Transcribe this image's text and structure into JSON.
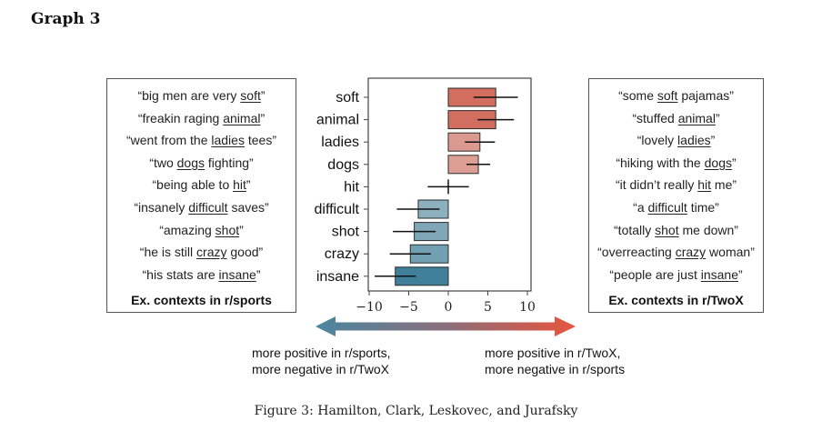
{
  "page_heading": "Graph 3",
  "caption": "Figure 3: Hamilton, Clark, Leskovec, and Jurafsky",
  "left_box": {
    "title": "Ex. contexts in r/sports",
    "contexts": [
      {
        "pre": "“big men are very ",
        "word": "soft",
        "post": "”"
      },
      {
        "pre": "“freakin raging ",
        "word": "animal",
        "post": "”"
      },
      {
        "pre": "“went from the ",
        "word": "ladies",
        "post": " tees”"
      },
      {
        "pre": "“two ",
        "word": "dogs",
        "post": " fighting”"
      },
      {
        "pre": "“being able to ",
        "word": "hit",
        "post": "”"
      },
      {
        "pre": "“insanely ",
        "word": "difficult",
        "post": " saves”"
      },
      {
        "pre": "“amazing ",
        "word": "shot",
        "post": "”"
      },
      {
        "pre": "“he is still ",
        "word": "crazy",
        "post": " good”"
      },
      {
        "pre": "“his stats are ",
        "word": "insane",
        "post": "”"
      }
    ]
  },
  "right_box": {
    "title": "Ex. contexts in r/TwoX",
    "contexts": [
      {
        "pre": "“some ",
        "word": "soft",
        "post": " pajamas”"
      },
      {
        "pre": "“stuffed ",
        "word": "animal",
        "post": "”"
      },
      {
        "pre": "“lovely ",
        "word": "ladies",
        "post": "”"
      },
      {
        "pre": "“hiking with the ",
        "word": "dogs",
        "post": "”"
      },
      {
        "pre": "“it didn’t really ",
        "word": "hit",
        "post": " me”"
      },
      {
        "pre": "“a ",
        "word": "difficult",
        "post": " time”"
      },
      {
        "pre": "“totally ",
        "word": "shot",
        "post": " me down”"
      },
      {
        "pre": "“overreacting ",
        "word": "crazy",
        "post": " woman”"
      },
      {
        "pre": "“people are just ",
        "word": "insane",
        "post": "”"
      }
    ]
  },
  "axis_notes": {
    "left": [
      "more positive in r/sports,",
      "more negative in r/TwoX"
    ],
    "right": [
      "more positive in r/TwoX,",
      "more negative in r/sports"
    ]
  },
  "chart_data": {
    "type": "bar",
    "orientation": "horizontal",
    "title": "",
    "xlabel": "",
    "ylabel": "",
    "categories": [
      "soft",
      "animal",
      "ladies",
      "dogs",
      "hit",
      "difficult",
      "shot",
      "crazy",
      "insane"
    ],
    "values": [
      6.0,
      6.0,
      4.0,
      3.8,
      0.0,
      -3.8,
      -4.3,
      -4.8,
      -6.7
    ],
    "error": [
      2.8,
      2.3,
      1.9,
      1.5,
      2.6,
      2.7,
      2.7,
      2.6,
      2.6
    ],
    "xlim": [
      -10,
      10
    ],
    "xticks": [
      -10,
      -5,
      0,
      5,
      10
    ],
    "xtick_labels": [
      "−10",
      "−5",
      "0",
      "5",
      "10"
    ],
    "grid": false,
    "colors": {
      "negative_end": "#3f7f99",
      "neutral": "#f3f0f0",
      "positive_end": "#cd5f4e",
      "arrow_left": "#4a86a0",
      "arrow_right": "#e8543e"
    }
  }
}
